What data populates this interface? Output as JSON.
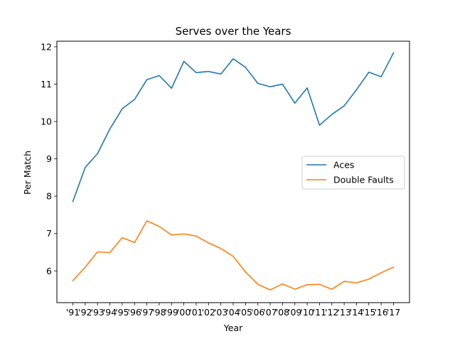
{
  "chart_data": {
    "type": "line",
    "title": "Serves over the Years",
    "xlabel": "Year",
    "ylabel": "Per Match",
    "categories": [
      "'91",
      "'92",
      "'93",
      "'94",
      "'95",
      "'96",
      "'97",
      "'98",
      "'99",
      "'00",
      "'01",
      "'02",
      "'03",
      "'04",
      "'05",
      "'06",
      "'07",
      "'08",
      "'09",
      "'10",
      "'11",
      "'12",
      "'13",
      "'14",
      "'15",
      "'16",
      "'17"
    ],
    "ylim": [
      5.15,
      12.15
    ],
    "yticks": [
      6,
      7,
      8,
      9,
      10,
      11,
      12
    ],
    "grid": false,
    "legend_position": "center-right",
    "series": [
      {
        "name": "Aces",
        "color": "#1f77b4",
        "values": [
          7.86,
          8.77,
          9.14,
          9.8,
          10.34,
          10.59,
          11.12,
          11.23,
          10.89,
          11.61,
          11.31,
          11.34,
          11.27,
          11.68,
          11.45,
          11.02,
          10.93,
          11.0,
          10.49,
          10.9,
          9.9,
          10.19,
          10.42,
          10.85,
          11.32,
          11.2,
          11.84
        ]
      },
      {
        "name": "Double Faults",
        "color": "#ff7f0e",
        "values": [
          5.74,
          6.1,
          6.51,
          6.49,
          6.89,
          6.76,
          7.34,
          7.19,
          6.96,
          6.99,
          6.93,
          6.75,
          6.6,
          6.39,
          5.97,
          5.64,
          5.49,
          5.65,
          5.51,
          5.63,
          5.64,
          5.51,
          5.72,
          5.68,
          5.78,
          5.95,
          6.1
        ]
      }
    ]
  }
}
